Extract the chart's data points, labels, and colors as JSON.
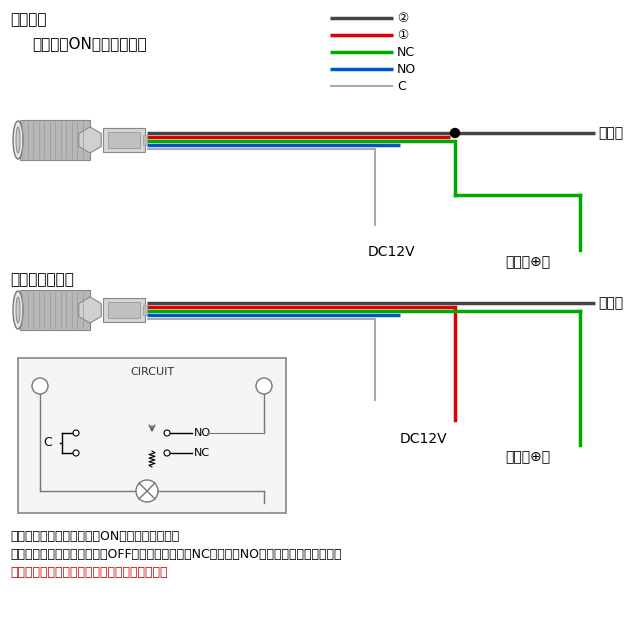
{
  "bg_color": "#ffffff",
  "title": "配線方法",
  "subtitle1": "スイッチONでイルミ点灯",
  "subtitle2": "常時イルミ点灯",
  "legend_colors": [
    "#444444",
    "#dd0000",
    "#00aa00",
    "#0055cc",
    "#aaaaaa"
  ],
  "legend_labels": [
    "②",
    "①",
    "NC",
    "NO",
    "C"
  ],
  "footer1": "上記はいずれも凹み状態でONにする場合です。",
  "footer2": "凹み状態で電装品を一時的にOFFする場合は、緑（NC）と青（NO）を入れ替えて下さい。",
  "footer3": "使用しない線は必ず絶縁処理をしてください。",
  "label_earth": "アース",
  "label_dc12v": "DC12V",
  "label_denso": "電装品⊕へ",
  "circuit_title": "CIRCUIT"
}
